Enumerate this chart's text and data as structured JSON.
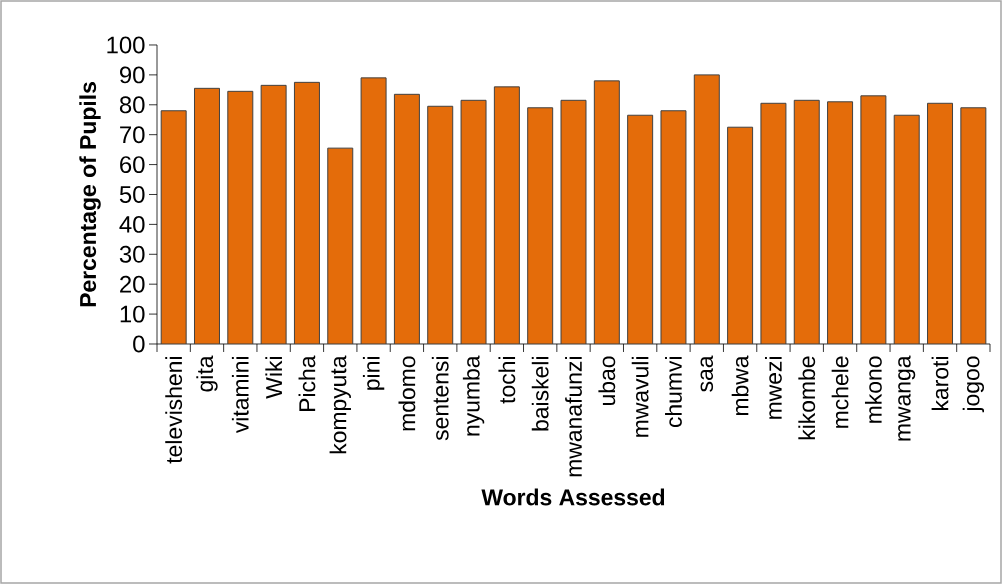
{
  "chart_data": {
    "type": "bar",
    "xlabel": "Words Assessed",
    "ylabel": "Percentage of Pupils",
    "categories": [
      "televisheni",
      "gita",
      "vitamini",
      "Wiki",
      "Picha",
      "kompyuta",
      "pini",
      "mdomo",
      "sentensi",
      "nyumba",
      "tochi",
      "baiskeli",
      "mwanafunzi",
      "ubao",
      "mwavuli",
      "chumvi",
      "saa",
      "mbwa",
      "mwezi",
      "kikombe",
      "mchele",
      "mkono",
      "mwanga",
      "karoti",
      "jogoo"
    ],
    "values": [
      78,
      85.5,
      84.5,
      86.5,
      87.5,
      65.5,
      89,
      83.5,
      79.5,
      81.5,
      86,
      79,
      81.5,
      88,
      76.5,
      78,
      90,
      72.5,
      80.5,
      81.5,
      81,
      83,
      76.5,
      80.5,
      79
    ],
    "color": "#e46c0a",
    "ylim": [
      0,
      100
    ],
    "yticks": [
      0,
      10,
      20,
      30,
      40,
      50,
      60,
      70,
      80,
      90,
      100
    ],
    "grid": false
  }
}
